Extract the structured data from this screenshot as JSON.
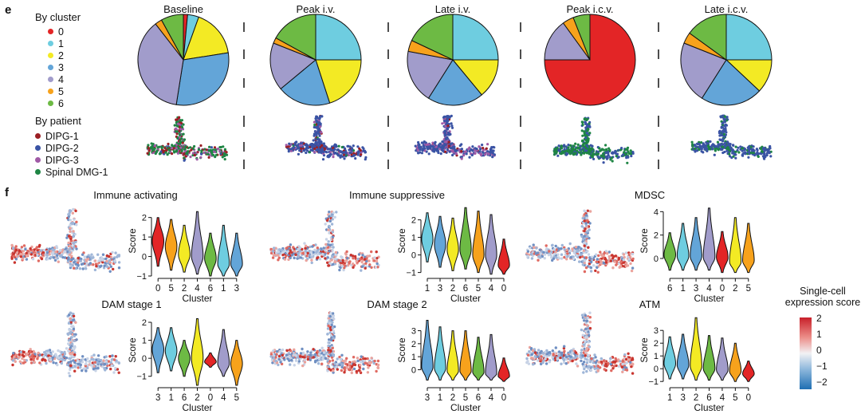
{
  "panel_e": {
    "letter": "e",
    "legend_cluster_title": "By cluster",
    "legend_patient_title": "By patient",
    "clusters": [
      {
        "label": "0",
        "color": "#e32526"
      },
      {
        "label": "1",
        "color": "#6ecde0"
      },
      {
        "label": "2",
        "color": "#f3ea24"
      },
      {
        "label": "3",
        "color": "#63a5d8"
      },
      {
        "label": "4",
        "color": "#a19ccb"
      },
      {
        "label": "5",
        "color": "#f7a21c"
      },
      {
        "label": "6",
        "color": "#6dba44"
      }
    ],
    "patients": [
      {
        "label": "DIPG-1",
        "color": "#9b1f24"
      },
      {
        "label": "DIPG-2",
        "color": "#3a53a4"
      },
      {
        "label": "DIPG-3",
        "color": "#a05aa6"
      },
      {
        "label": "Spinal DMG-1",
        "color": "#1e8544"
      }
    ]
  },
  "panel_f": {
    "letter": "f",
    "colorbar_title_1": "Single-cell",
    "colorbar_title_2": "expression score",
    "colorbar_ticks": [
      "2",
      "1",
      "0",
      "−1",
      "−2"
    ]
  },
  "chart_data": [
    {
      "type": "pie",
      "title": "Baseline",
      "labels": [
        "0",
        "1",
        "2",
        "3",
        "4",
        "5",
        "6"
      ],
      "values": [
        1.5,
        4,
        17,
        30,
        37,
        2.5,
        8
      ]
    },
    {
      "type": "pie",
      "title": "Peak i.v.",
      "labels": [
        "0",
        "1",
        "2",
        "3",
        "4",
        "5",
        "6"
      ],
      "values": [
        0,
        25,
        20,
        19,
        17,
        2,
        17
      ]
    },
    {
      "type": "pie",
      "title": "Late i.v.",
      "labels": [
        "0",
        "1",
        "2",
        "3",
        "4",
        "5",
        "6"
      ],
      "values": [
        0,
        25,
        14,
        20,
        19,
        4,
        18
      ]
    },
    {
      "type": "pie",
      "title": "Peak i.c.v.",
      "labels": [
        "0",
        "1",
        "2",
        "3",
        "4",
        "5",
        "6"
      ],
      "values": [
        75,
        0,
        0,
        0,
        15,
        4,
        6
      ]
    },
    {
      "type": "pie",
      "title": "Late i.c.v.",
      "labels": [
        "0",
        "1",
        "2",
        "3",
        "4",
        "5",
        "6"
      ],
      "values": [
        0,
        25,
        12,
        22,
        22,
        4,
        15
      ]
    },
    {
      "type": "violin",
      "title": "Immune activating",
      "xlabel": "Cluster",
      "ylabel": "Score",
      "ylim": [
        -1,
        2.6
      ],
      "yticks": [
        -1,
        0,
        1,
        2
      ],
      "categories": [
        "0",
        "5",
        "2",
        "4",
        "6",
        "1",
        "3"
      ],
      "medians": [
        0.8,
        0.5,
        0.1,
        0.0,
        -0.1,
        -0.4,
        -0.4
      ],
      "maxima": [
        2.0,
        1.9,
        1.6,
        2.3,
        1.2,
        1.6,
        1.2
      ],
      "minima": [
        -0.5,
        -0.7,
        -0.8,
        -0.9,
        -1.0,
        -1.0,
        -1.0
      ]
    },
    {
      "type": "violin",
      "title": "Immune suppressive",
      "xlabel": "Cluster",
      "ylabel": "Score",
      "ylim": [
        -1.2,
        2.8
      ],
      "yticks": [
        -1,
        0,
        1,
        2
      ],
      "categories": [
        "1",
        "3",
        "2",
        "6",
        "5",
        "4",
        "0"
      ],
      "medians": [
        0.9,
        0.6,
        0.3,
        0.3,
        0.0,
        0.0,
        -0.6
      ],
      "maxima": [
        2.4,
        2.2,
        2.1,
        2.7,
        2.5,
        2.3,
        0.9
      ],
      "minima": [
        -0.4,
        -0.7,
        -0.9,
        -0.8,
        -1.0,
        -1.1,
        -1.1
      ]
    },
    {
      "type": "violin",
      "title": "MDSC",
      "xlabel": "Cluster",
      "ylabel": "Score",
      "ylim": [
        -1.5,
        4.5
      ],
      "yticks": [
        0,
        2,
        4
      ],
      "categories": [
        "6",
        "1",
        "3",
        "4",
        "0",
        "2",
        "5"
      ],
      "medians": [
        0.3,
        0.2,
        0.2,
        0.1,
        0.1,
        -0.3,
        -0.2
      ],
      "maxima": [
        2.2,
        3.0,
        3.5,
        4.3,
        2.3,
        3.5,
        3.0
      ],
      "minima": [
        -1.0,
        -1.0,
        -1.0,
        -1.0,
        -1.2,
        -1.2,
        -1.2
      ]
    },
    {
      "type": "violin",
      "title": "DAM stage 1",
      "xlabel": "Cluster",
      "ylabel": "Score",
      "ylim": [
        -1.5,
        2.4
      ],
      "yticks": [
        -1,
        0,
        1,
        2
      ],
      "categories": [
        "3",
        "1",
        "6",
        "2",
        "0",
        "4",
        "5"
      ],
      "medians": [
        0.5,
        0.4,
        0.0,
        0.0,
        -0.2,
        -0.3,
        -0.3
      ],
      "maxima": [
        1.7,
        1.7,
        1.0,
        2.2,
        0.3,
        1.6,
        1.0
      ],
      "minima": [
        -0.8,
        -0.7,
        -1.0,
        -1.5,
        -0.5,
        -1.0,
        -1.5
      ]
    },
    {
      "type": "violin",
      "title": "DAM stage 2",
      "xlabel": "Cluster",
      "ylabel": "Score",
      "ylim": [
        -1.2,
        4.2
      ],
      "yticks": [
        0,
        1,
        2,
        3
      ],
      "categories": [
        "3",
        "1",
        "2",
        "5",
        "6",
        "4",
        "0"
      ],
      "medians": [
        0.2,
        0.1,
        -0.1,
        -0.1,
        -0.2,
        -0.3,
        -0.5
      ],
      "maxima": [
        3.8,
        3.3,
        3.0,
        3.0,
        2.5,
        2.7,
        0.9
      ],
      "minima": [
        -0.8,
        -0.8,
        -0.8,
        -0.8,
        -0.8,
        -0.8,
        -0.9
      ]
    },
    {
      "type": "violin",
      "title": "ATM",
      "xlabel": "Cluster",
      "ylabel": "Score",
      "ylim": [
        -1.3,
        4.2
      ],
      "yticks": [
        -1,
        0,
        1,
        2,
        3
      ],
      "categories": [
        "1",
        "3",
        "2",
        "6",
        "4",
        "5",
        "0"
      ],
      "medians": [
        0.4,
        0.3,
        0.2,
        0.0,
        -0.1,
        -0.2,
        -0.4
      ],
      "maxima": [
        2.5,
        2.7,
        4.0,
        2.6,
        2.4,
        2.0,
        0.6
      ],
      "minima": [
        -0.8,
        -0.8,
        -0.9,
        -0.9,
        -0.9,
        -1.0,
        -1.0
      ]
    }
  ]
}
